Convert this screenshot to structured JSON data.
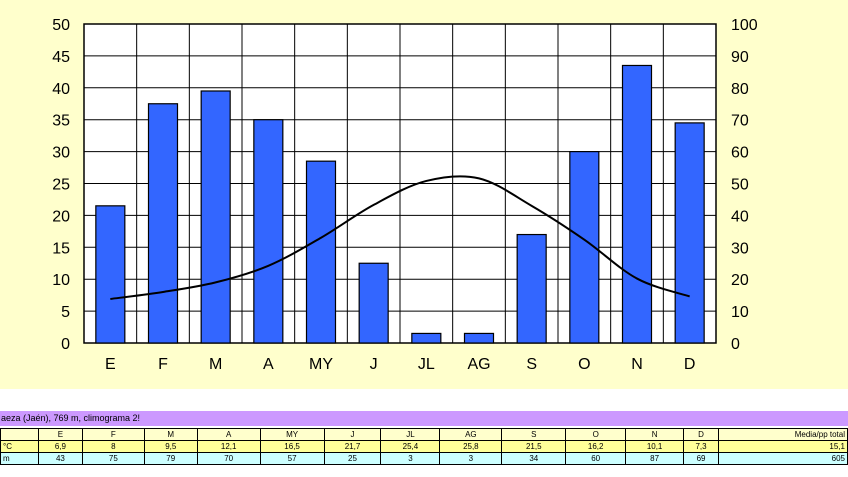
{
  "chart_data": {
    "type": "bar",
    "categories": [
      "E",
      "F",
      "M",
      "A",
      "MY",
      "J",
      "JL",
      "AG",
      "S",
      "O",
      "N",
      "D"
    ],
    "series": [
      {
        "type": "bar",
        "axis": "left",
        "color": "#3366ff",
        "values": [
          21.5,
          37.5,
          39.5,
          35,
          28.5,
          12.5,
          1.5,
          1.5,
          17,
          30,
          43.5,
          34.5
        ]
      },
      {
        "type": "line",
        "axis": "right",
        "color": "#000000",
        "values": [
          13.8,
          16,
          19,
          24.2,
          33,
          43.3,
          50.8,
          51.6,
          43,
          32.4,
          20.2,
          14.6
        ]
      }
    ],
    "ylim_left": [
      0,
      50
    ],
    "yticks_left": [
      0,
      5,
      10,
      15,
      20,
      25,
      30,
      35,
      40,
      45,
      50
    ],
    "ylim_right": [
      0,
      100
    ],
    "yticks_right": [
      0,
      10,
      20,
      30,
      40,
      50,
      60,
      70,
      80,
      90,
      100
    ],
    "grid": true,
    "background": "#ffffcc"
  },
  "table": {
    "caption": "aeza (Jaén), 769 m, climograma 2!",
    "header": [
      "",
      "E",
      "F",
      "M",
      "A",
      "MY",
      "J",
      "JL",
      "AG",
      "S",
      "O",
      "N",
      "D",
      "Media/pp total"
    ],
    "rows": [
      [
        "°C",
        "6,9",
        "8",
        "9,5",
        "12,1",
        "16,5",
        "21,7",
        "25,4",
        "25,8",
        "21,5",
        "16,2",
        "10,1",
        "7,3",
        "15,1"
      ],
      [
        "m",
        "43",
        "75",
        "79",
        "70",
        "57",
        "25",
        "3",
        "3",
        "34",
        "60",
        "87",
        "69",
        "605"
      ]
    ]
  }
}
